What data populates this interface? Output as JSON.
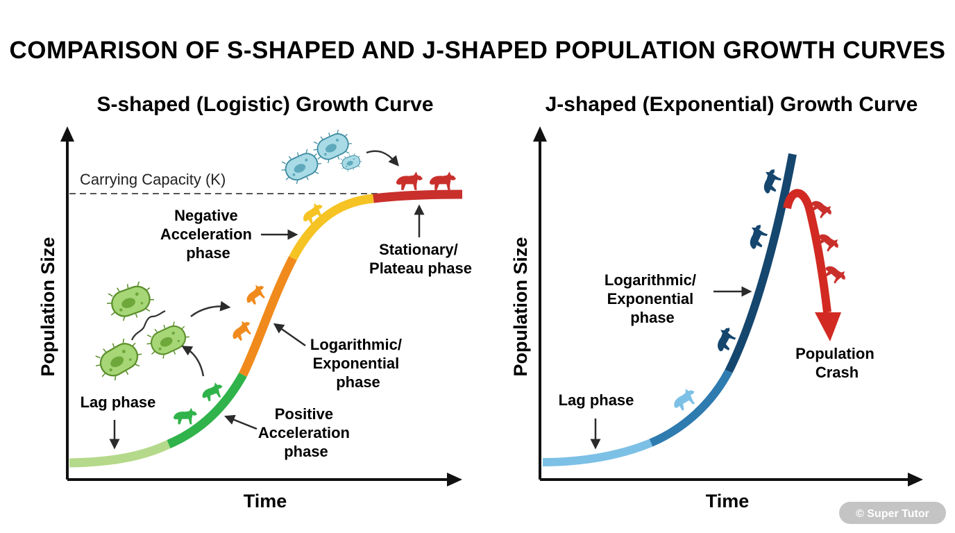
{
  "title": "COMPARISON OF S-SHAPED AND J-SHAPED POPULATION GROWTH CURVES",
  "s_curve": {
    "heading": "S-shaped (Logistic) Growth Curve",
    "y_axis": "Population Size",
    "x_axis": "Time",
    "carrying_capacity": "Carrying Capacity (K)",
    "phases": {
      "lag": [
        "Lag phase"
      ],
      "positive": [
        "Positive",
        "Acceleration",
        "phase"
      ],
      "log": [
        "Logarithmic/",
        "Exponential",
        "phase"
      ],
      "negative": [
        "Negative",
        "Acceleration",
        "phase"
      ],
      "stationary": [
        "Stationary/",
        "Plateau phase"
      ]
    },
    "colors": {
      "lag": "#b5d98a",
      "positive": "#2fb34a",
      "log": "#f08a1c",
      "negative": "#f6c324",
      "stationary": "#c9302c"
    }
  },
  "j_curve": {
    "heading": "J-shaped (Exponential) Growth Curve",
    "y_axis": "Population Size",
    "x_axis": "Time",
    "phases": {
      "lag": [
        "Lag phase"
      ],
      "log": [
        "Logarithmic/",
        "Exponential",
        "phase"
      ],
      "crash": [
        "Population",
        "Crash"
      ]
    },
    "colors": {
      "lag": "#7cc0e6",
      "mid": "#2e7bb0",
      "top": "#15466e",
      "crash": "#d22a22"
    }
  },
  "watermark": "© Super Tutor",
  "icons": [
    "bacteria-icon",
    "animal-icon"
  ]
}
